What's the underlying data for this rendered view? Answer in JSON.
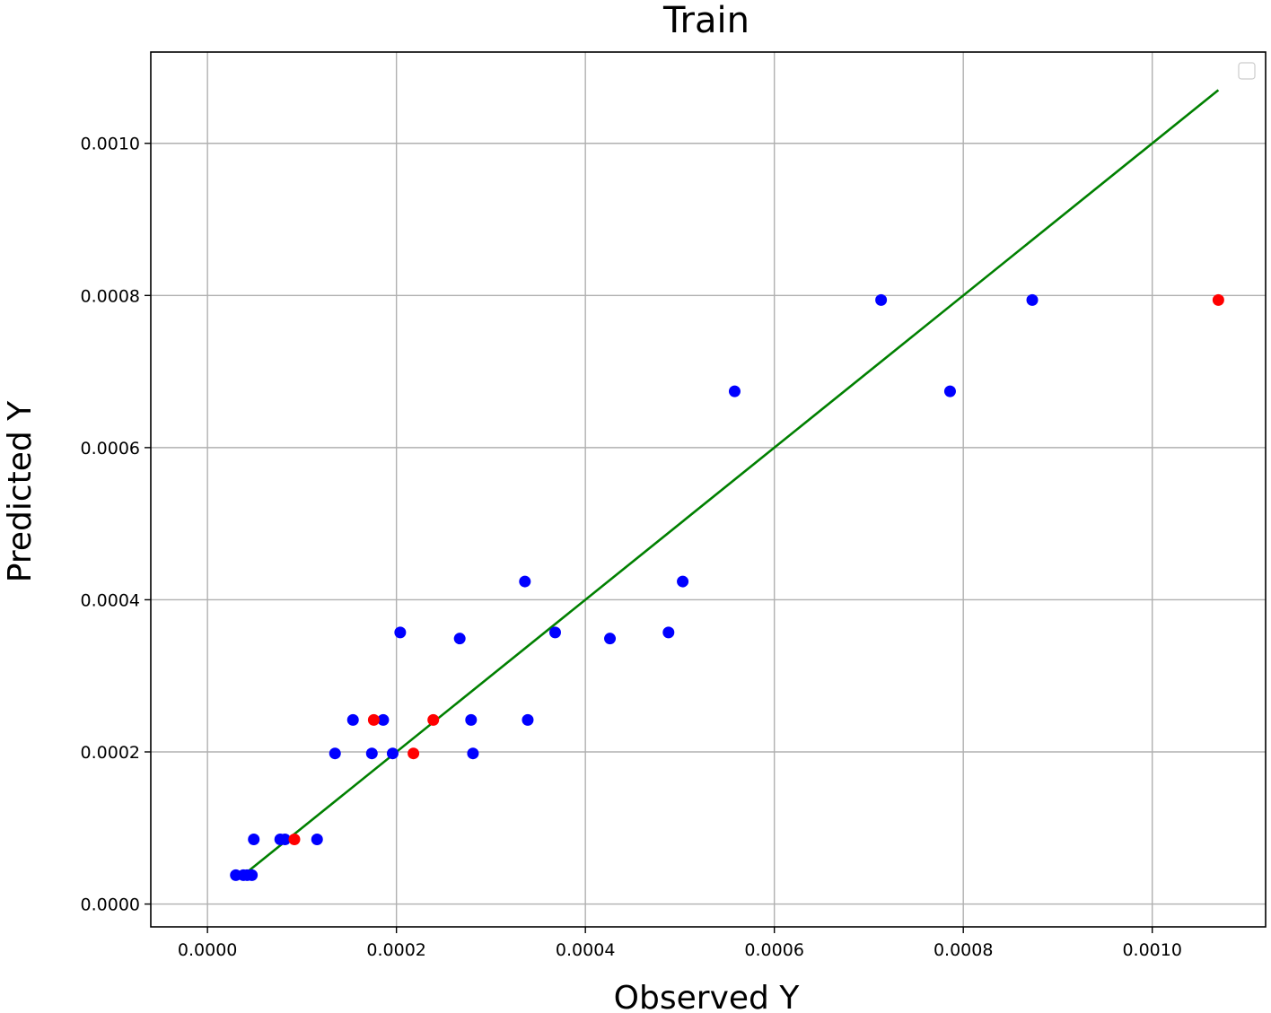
{
  "chart_data": {
    "type": "scatter",
    "title": "Train",
    "xlabel": "Observed Y",
    "ylabel": "Predicted Y",
    "xlim": [
      -6e-05,
      0.00112
    ],
    "ylim": [
      -3e-05,
      0.00112
    ],
    "xticks": [
      0.0,
      0.0002,
      0.0004,
      0.0006,
      0.0008,
      0.001
    ],
    "xtick_labels": [
      "0.0000",
      "0.0002",
      "0.0004",
      "0.0006",
      "0.0008",
      "0.0010"
    ],
    "yticks": [
      0.0,
      0.0002,
      0.0004,
      0.0006,
      0.0008,
      0.001
    ],
    "ytick_labels": [
      "0.0000",
      "0.0002",
      "0.0004",
      "0.0006",
      "0.0008",
      "0.0010"
    ],
    "grid": true,
    "legend": "top-right (empty)",
    "colors": {
      "blue": "#0000ff",
      "red": "#ff0000",
      "line": "#008000",
      "grid": "#b0b0b0"
    },
    "series": [
      {
        "color": "blue",
        "x": [
          3e-05,
          3.8e-05,
          4.2e-05,
          4.7e-05,
          4.9e-05,
          7.7e-05,
          8.2e-05,
          0.000116,
          0.000135,
          0.000154,
          0.000174,
          0.000186,
          0.000196,
          0.000204,
          0.000267,
          0.000279,
          0.000281,
          0.000336,
          0.000339,
          0.000368,
          0.000426,
          0.000488,
          0.000503,
          0.000558,
          0.000713,
          0.000786,
          0.000873
        ],
        "y": [
          3.8e-05,
          3.8e-05,
          3.8e-05,
          3.8e-05,
          8.5e-05,
          8.5e-05,
          8.5e-05,
          8.5e-05,
          0.000198,
          0.000242,
          0.000198,
          0.000242,
          0.000198,
          0.000357,
          0.000349,
          0.000242,
          0.000198,
          0.000424,
          0.000242,
          0.000357,
          0.000349,
          0.000357,
          0.000424,
          0.000674,
          0.000794,
          0.000674,
          0.000794
        ]
      },
      {
        "color": "red",
        "x": [
          9.2e-05,
          0.000176,
          0.000218,
          0.000239,
          0.00107
        ],
        "y": [
          8.5e-05,
          0.000242,
          0.000198,
          0.000242,
          0.000794
        ]
      }
    ],
    "fit_line": {
      "color": "green",
      "x": [
        4e-05,
        0.00107
      ],
      "y": [
        4e-05,
        0.00107
      ]
    }
  }
}
